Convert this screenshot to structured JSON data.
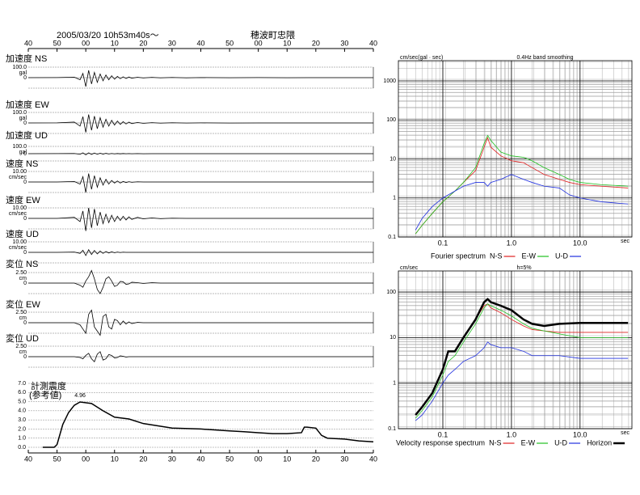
{
  "header": {
    "date": "2005/03/20 10h53m40s〜",
    "station": "穂波町忠隈"
  },
  "chart_data": [
    {
      "type": "waveform",
      "xlim": [
        0,
        120
      ],
      "xticks": [
        {
          "value": 0,
          "label": "40"
        },
        {
          "value": 10,
          "label": "50"
        },
        {
          "value": 20,
          "label": "00"
        },
        {
          "value": 30,
          "label": "10"
        },
        {
          "value": 40,
          "label": "20"
        },
        {
          "value": 50,
          "label": "30"
        },
        {
          "value": 60,
          "label": "40"
        },
        {
          "value": 70,
          "label": "50"
        },
        {
          "value": 80,
          "label": "00"
        },
        {
          "value": 90,
          "label": "10"
        },
        {
          "value": 100,
          "label": "20"
        },
        {
          "value": 110,
          "label": "30"
        },
        {
          "value": 120,
          "label": "40"
        }
      ],
      "x": [
        0,
        10,
        16,
        18,
        19,
        20,
        21,
        22,
        23,
        24,
        25,
        26,
        27,
        28,
        29,
        30,
        31,
        32,
        33,
        34,
        35,
        36,
        38,
        40,
        43,
        46,
        50,
        55,
        60,
        70,
        80,
        90,
        100,
        110,
        120
      ],
      "series": [
        {
          "name": "加速度 NS",
          "color": "#000000",
          "unit": "gal",
          "ylim": [
            -100,
            100
          ],
          "yticks": [
            0,
            {
              "value": 100,
              "label": "100.0"
            }
          ],
          "values": [
            0,
            1,
            5,
            -20,
            40,
            -85,
            70,
            -60,
            50,
            -45,
            35,
            -30,
            25,
            -20,
            18,
            -15,
            12,
            -10,
            8,
            -8,
            6,
            -5,
            4,
            -3,
            3,
            -2,
            2,
            -2,
            1,
            -1,
            1,
            -1,
            0,
            0,
            0
          ]
        },
        {
          "name": "加速度 EW",
          "color": "#000000",
          "unit": "gal",
          "ylim": [
            -100,
            100
          ],
          "yticks": [
            0,
            {
              "value": 100,
              "label": "100.0"
            }
          ],
          "values": [
            0,
            1,
            8,
            -30,
            60,
            -90,
            80,
            -70,
            65,
            -55,
            50,
            -40,
            35,
            -30,
            25,
            -20,
            18,
            -14,
            12,
            -10,
            8,
            -6,
            5,
            -4,
            3,
            -2,
            2,
            -1,
            1,
            -1,
            0,
            0,
            0,
            0,
            0
          ]
        },
        {
          "name": "加速度 UD",
          "color": "#000000",
          "unit": "gal",
          "ylim": [
            -100,
            100
          ],
          "yticks": [
            0,
            {
              "value": 100,
              "label": "100.0"
            }
          ],
          "values": [
            0,
            1,
            3,
            -8,
            12,
            -15,
            12,
            -10,
            9,
            -8,
            7,
            -6,
            5,
            -4,
            3,
            -3,
            2,
            -2,
            2,
            -1,
            1,
            -1,
            1,
            -1,
            0,
            0,
            0,
            0,
            0,
            0,
            0,
            0,
            0,
            0,
            0
          ]
        },
        {
          "name": "速度 NS",
          "color": "#000000",
          "unit": "cm/sec",
          "ylim": [
            -10,
            10
          ],
          "yticks": [
            0,
            {
              "value": 10,
              "label": "10.00"
            }
          ],
          "values": [
            0,
            0,
            0.5,
            -2,
            5,
            -10,
            8,
            -7,
            6,
            -5,
            4,
            -3,
            2.5,
            -2,
            1.5,
            -1,
            1,
            -1,
            0.5,
            -0.5,
            0.3,
            -0.3,
            0.2,
            0,
            0,
            0,
            0,
            0,
            0,
            0,
            0,
            0,
            0,
            0,
            0
          ]
        },
        {
          "name": "速度 EW",
          "color": "#000000",
          "unit": "cm/sec",
          "ylim": [
            -10,
            10
          ],
          "yticks": [
            0,
            {
              "value": 10,
              "label": "10.00"
            }
          ],
          "values": [
            0,
            0,
            1,
            -3,
            7,
            -12,
            10,
            -9,
            9,
            -7,
            6,
            -5,
            4,
            -4,
            3,
            -3,
            2,
            -2,
            2,
            -1.5,
            1.5,
            -1,
            1,
            -0.5,
            0.5,
            -0.3,
            0.2,
            0,
            0,
            0,
            0,
            0,
            0,
            0,
            0
          ]
        },
        {
          "name": "速度 UD",
          "color": "#000000",
          "unit": "cm/sec",
          "ylim": [
            -10,
            10
          ],
          "yticks": [
            0,
            {
              "value": 10,
              "label": "10.00"
            }
          ],
          "values": [
            0,
            0,
            0.3,
            -1,
            2,
            -3,
            2.5,
            -2,
            1.8,
            -1.5,
            1.2,
            -1,
            0.8,
            -0.6,
            0.5,
            -0.4,
            0.3,
            -0.2,
            0.2,
            0,
            0,
            0,
            0,
            0,
            0,
            0,
            0,
            0,
            0,
            0,
            0,
            0,
            0,
            0,
            0
          ]
        },
        {
          "name": "変位 NS",
          "color": "#000000",
          "unit": "cm",
          "ylim": [
            -2.5,
            2.5
          ],
          "yticks": [
            0,
            {
              "value": 2.5,
              "label": "2.50"
            }
          ],
          "values": [
            0,
            0,
            0,
            -0.5,
            -1,
            0.5,
            1.5,
            3,
            1,
            -1.5,
            -2.5,
            -1,
            1,
            1.5,
            0.5,
            -0.8,
            -0.5,
            0.4,
            0.3,
            -0.3,
            -0.2,
            0.2,
            0.1,
            -0.1,
            0.1,
            0,
            0,
            0,
            0,
            0,
            0,
            0,
            0,
            0,
            0
          ]
        },
        {
          "name": "変位 EW",
          "color": "#000000",
          "unit": "cm",
          "ylim": [
            -2.5,
            2.5
          ],
          "yticks": [
            0,
            {
              "value": 2.5,
              "label": "2.50"
            }
          ],
          "values": [
            0,
            0,
            0,
            -0.5,
            -1.5,
            -2.5,
            2,
            3,
            -1,
            -2,
            -3,
            1.5,
            2,
            -1,
            -1.5,
            0.8,
            0.5,
            -0.5,
            0.4,
            -0.3,
            0.2,
            -0.2,
            0.1,
            0,
            0,
            0,
            0,
            0,
            0,
            0,
            0,
            0,
            0,
            0,
            0
          ]
        },
        {
          "name": "変位 UD",
          "color": "#000000",
          "unit": "cm",
          "ylim": [
            -2.5,
            2.5
          ],
          "yticks": [
            0,
            {
              "value": 2.5,
              "label": "2.50"
            }
          ],
          "values": [
            0,
            0,
            0,
            -0.2,
            -0.5,
            0.3,
            0.8,
            -0.5,
            -1.2,
            0.6,
            1.2,
            -0.8,
            -0.5,
            0.5,
            0.3,
            -0.3,
            -0.2,
            0.2,
            0.1,
            -0.1,
            0,
            0,
            0,
            0,
            0,
            0,
            0,
            0,
            0,
            0,
            0,
            0,
            0,
            0,
            0
          ]
        }
      ]
    },
    {
      "type": "line",
      "title": "計測震度",
      "subtitle": "(参考値)",
      "color": "#000000",
      "grid": true,
      "xlim": [
        0,
        120
      ],
      "xticks": [
        {
          "value": 0,
          "label": "40"
        },
        {
          "value": 10,
          "label": "50"
        },
        {
          "value": 20,
          "label": "00"
        },
        {
          "value": 30,
          "label": "10"
        },
        {
          "value": 40,
          "label": "20"
        },
        {
          "value": 50,
          "label": "30"
        },
        {
          "value": 60,
          "label": "40"
        },
        {
          "value": 70,
          "label": "50"
        },
        {
          "value": 80,
          "label": "00"
        },
        {
          "value": 90,
          "label": "10"
        },
        {
          "value": 100,
          "label": "20"
        },
        {
          "value": 110,
          "label": "30"
        },
        {
          "value": 120,
          "label": "40"
        }
      ],
      "ylim": [
        0,
        7
      ],
      "yticks": [
        {
          "value": 0,
          "label": "0.0"
        },
        {
          "value": 1,
          "label": "1.0"
        },
        {
          "value": 2,
          "label": "2.0"
        },
        {
          "value": 3,
          "label": "3.0"
        },
        {
          "value": 4,
          "label": "4.0"
        },
        {
          "value": 5,
          "label": "5.0"
        },
        {
          "value": 6,
          "label": "6.0"
        },
        {
          "value": 7,
          "label": "7.0"
        }
      ],
      "x": [
        5,
        9,
        10,
        12,
        14,
        16,
        18,
        22,
        26,
        30,
        35,
        40,
        50,
        60,
        70,
        75,
        80,
        85,
        90,
        95,
        96,
        97,
        100,
        102,
        104,
        110,
        115,
        120
      ],
      "values": [
        0,
        0,
        0.3,
        2.5,
        3.8,
        4.6,
        4.96,
        4.8,
        4.0,
        3.3,
        3.1,
        2.6,
        2.1,
        2.0,
        1.8,
        1.7,
        1.6,
        1.5,
        1.5,
        1.6,
        2.2,
        2.2,
        2.1,
        1.3,
        1.0,
        0.9,
        0.7,
        0.6
      ]
    },
    {
      "type": "loglog",
      "title": "Fourier spectrum",
      "y_unit": "cm/sec(gal · sec)",
      "note": "0.4Hz band smoothing",
      "x_unit": "sec",
      "log_x": true,
      "log_y": true,
      "grid": true,
      "xlim": [
        0.0225,
        57
      ],
      "ylim": [
        0.1,
        3300
      ],
      "xticks": [
        0.1,
        {
          "value": 1,
          "label": "1.0"
        },
        {
          "value": 10,
          "label": "10.0"
        }
      ],
      "yticks": [
        0.1,
        1,
        10,
        100,
        1000
      ],
      "x": [
        0.04,
        0.05,
        0.07,
        0.1,
        0.15,
        0.2,
        0.3,
        0.4,
        0.45,
        0.5,
        0.7,
        1,
        1.5,
        2,
        3,
        5,
        7,
        10,
        20,
        50
      ],
      "series": [
        {
          "name": "N-S",
          "color": "#e02020",
          "values": [
            0.12,
            0.2,
            0.4,
            0.8,
            1.5,
            2.5,
            5,
            20,
            35,
            20,
            12,
            9,
            8,
            6,
            4,
            3,
            2.5,
            2.2,
            2,
            1.8
          ]
        },
        {
          "name": "E-W",
          "color": "#20c020",
          "values": [
            0.12,
            0.2,
            0.4,
            0.8,
            1.5,
            2.5,
            6,
            25,
            40,
            30,
            15,
            12,
            11,
            9,
            6,
            4,
            3,
            2.5,
            2.2,
            2
          ]
        },
        {
          "name": "U-D",
          "color": "#2030e0",
          "values": [
            0.15,
            0.3,
            0.6,
            1,
            1.5,
            2,
            2.5,
            2.5,
            2,
            2.5,
            3,
            4,
            3,
            2.5,
            2,
            1.8,
            1.2,
            1,
            0.8,
            0.7
          ]
        }
      ]
    },
    {
      "type": "loglog",
      "title": "Velocity response spectrum",
      "y_unit": "cm/sec",
      "note": "h=5%",
      "x_unit": "sec",
      "log_x": true,
      "log_y": true,
      "grid": true,
      "xlim": [
        0.0225,
        57
      ],
      "ylim": [
        0.1,
        290
      ],
      "xticks": [
        0.1,
        {
          "value": 1,
          "label": "1.0"
        },
        {
          "value": 10,
          "label": "10.0"
        }
      ],
      "yticks": [
        0.1,
        1,
        10,
        100
      ],
      "x": [
        0.04,
        0.05,
        0.07,
        0.1,
        0.12,
        0.15,
        0.2,
        0.3,
        0.4,
        0.45,
        0.5,
        0.7,
        1,
        1.5,
        2,
        3,
        5,
        10,
        20,
        50
      ],
      "series": [
        {
          "name": "N-S",
          "color": "#e02020",
          "values": [
            0.2,
            0.3,
            0.6,
            2,
            5,
            5,
            10,
            25,
            50,
            55,
            45,
            35,
            25,
            18,
            15,
            14,
            13,
            13,
            13,
            13
          ]
        },
        {
          "name": "E-W",
          "color": "#20c020",
          "values": [
            0.17,
            0.25,
            0.5,
            1.5,
            3,
            4,
            8,
            20,
            45,
            55,
            50,
            40,
            30,
            20,
            16,
            14,
            12,
            10,
            10,
            10
          ]
        },
        {
          "name": "U-D",
          "color": "#2030e0",
          "values": [
            0.15,
            0.2,
            0.4,
            1,
            1.5,
            2,
            3,
            4,
            6,
            8,
            7,
            6,
            6,
            5,
            4,
            4,
            4,
            3.5,
            3.5,
            3.5
          ]
        },
        {
          "name": "Horizon",
          "color": "#000000",
          "width": 2.5,
          "values": [
            0.2,
            0.3,
            0.6,
            2,
            5,
            5,
            10,
            25,
            60,
            70,
            60,
            50,
            40,
            25,
            20,
            18,
            20,
            21,
            21,
            21
          ]
        }
      ]
    }
  ]
}
